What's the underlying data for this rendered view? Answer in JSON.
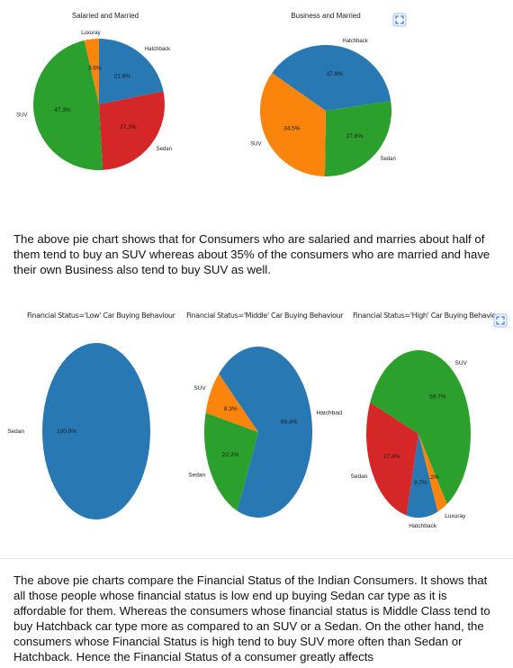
{
  "colors": {
    "blue": "#2878b4",
    "orange": "#fb850c",
    "green": "#2ca02c",
    "red": "#d62728"
  },
  "chart_data": [
    {
      "type": "pie",
      "title": "Salaried and Married",
      "slices": [
        {
          "label": "Luxuray",
          "value": 3.6,
          "pct_label": "3.6%",
          "color": "#fb850c"
        },
        {
          "label": "Hatchback",
          "value": 21.8,
          "pct_label": "21.8%",
          "color": "#2878b4"
        },
        {
          "label": "Sedan",
          "value": 27.3,
          "pct_label": "27.3%",
          "color": "#d62728"
        },
        {
          "label": "SUV",
          "value": 47.3,
          "pct_label": "47.3%",
          "color": "#2ca02c"
        }
      ]
    },
    {
      "type": "pie",
      "title": "Business and Married",
      "slices": [
        {
          "label": "Hatchback",
          "value": 37.9,
          "pct_label": "37.9%",
          "color": "#2878b4"
        },
        {
          "label": "Sedan",
          "value": 27.6,
          "pct_label": "27.6%",
          "color": "#2ca02c"
        },
        {
          "label": "SUV",
          "value": 34.5,
          "pct_label": "34.5%",
          "color": "#fb850c"
        }
      ]
    },
    {
      "type": "pie",
      "title": "Financial Status='Low' Car Buying Behaviour",
      "slices": [
        {
          "label": "Sedan",
          "value": 100.0,
          "pct_label": "100.0%",
          "color": "#2878b4"
        }
      ]
    },
    {
      "type": "pie",
      "title": "Financial Status='Middle' Car Buying Behaviour",
      "slices": [
        {
          "label": "Hatchback",
          "value": 69.4,
          "pct_label": "69.4%",
          "color": "#2878b4"
        },
        {
          "label": "Sedan",
          "value": 22.2,
          "pct_label": "22.2%",
          "color": "#2ca02c"
        },
        {
          "label": "SUV",
          "value": 8.3,
          "pct_label": "8.3%",
          "color": "#fb850c"
        }
      ]
    },
    {
      "type": "pie",
      "title": "Financial Status='High' Car Buying Behaviour",
      "slices": [
        {
          "label": "Luxuray",
          "value": 3.2,
          "pct_label": "3.2%",
          "color": "#fb850c"
        },
        {
          "label": "Hatchback",
          "value": 9.7,
          "pct_label": "9.7%",
          "color": "#2878b4"
        },
        {
          "label": "Sedan",
          "value": 27.4,
          "pct_label": "27.4%",
          "color": "#d62728"
        },
        {
          "label": "SUV",
          "value": 59.7,
          "pct_label": "59.7%",
          "color": "#2ca02c"
        }
      ]
    }
  ],
  "paragraphs": [
    "The above pie chart shows that for Consumers who are salaried and marries about half of them tend to buy an SUV whereas about 35% of the consumers who are married and have their own Business also tend to buy SUV as well.",
    "The above pie charts compare the Financial Status of the Indian Consumers. It shows that all those people whose financial status is low end up buying Sedan car type as it is affordable for them. Whereas the consumers whose financial status is Middle Class tend to buy Hatchback car type more as compared to an SUV or a Sedan. On the other hand, the consumers whose Financial Status is high tend to buy SUV more often than Sedan or Hatchback. Hence the Financial Status of a consumer greatly affects"
  ],
  "icons": [
    "expand-icon",
    "expand-icon"
  ]
}
